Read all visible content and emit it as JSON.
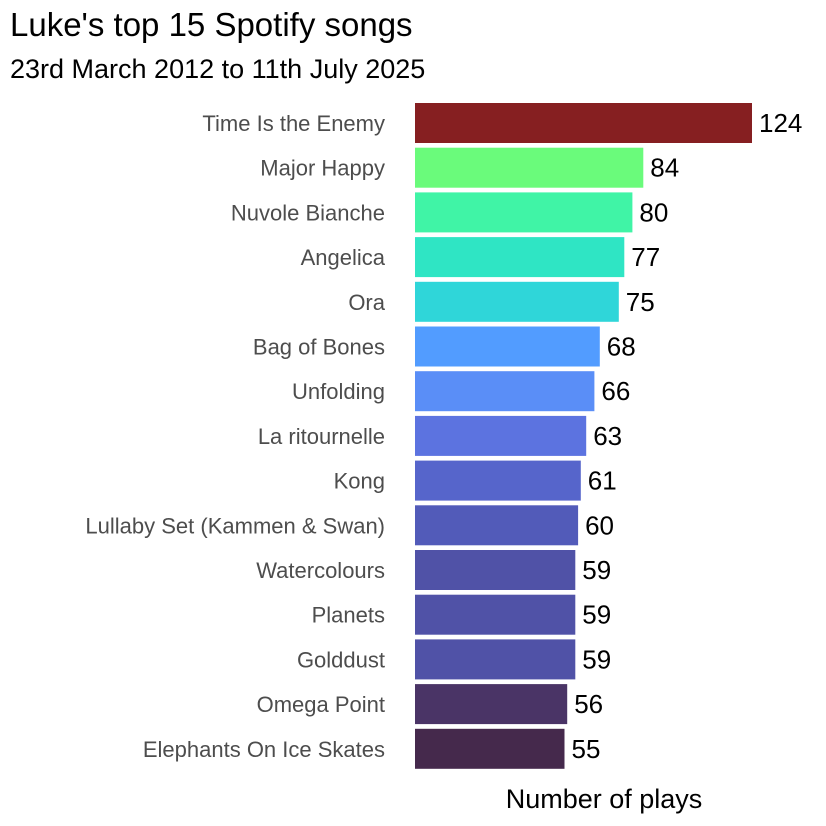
{
  "chart_data": {
    "type": "bar",
    "orientation": "horizontal",
    "title": "Luke's top 15 Spotify songs",
    "subtitle": "23rd March 2012 to 11th July 2025",
    "xlabel": "Number of plays",
    "ylabel": "",
    "xlim": [
      0,
      124
    ],
    "grid": false,
    "legend": "none",
    "categories": [
      "Time Is the Enemy",
      "Major Happy",
      "Nuvole Bianche",
      "Angelica",
      "Ora",
      "Bag of Bones",
      "Unfolding",
      "La ritournelle",
      "Kong",
      "Lullaby Set (Kammen & Swan)",
      "Watercolours",
      "Planets",
      "Golddust",
      "Omega Point",
      "Elephants On Ice Skates"
    ],
    "values": [
      124,
      84,
      80,
      77,
      75,
      68,
      66,
      63,
      61,
      60,
      59,
      59,
      59,
      56,
      55
    ],
    "colors": [
      "#861f21",
      "#6afb7b",
      "#40f4a6",
      "#2fe5c4",
      "#2fd6d9",
      "#529cff",
      "#5a8ef7",
      "#5c73e0",
      "#5665cb",
      "#525bb9",
      "#5052a7",
      "#5052a7",
      "#5052a7",
      "#4a3466",
      "#45294c"
    ]
  }
}
